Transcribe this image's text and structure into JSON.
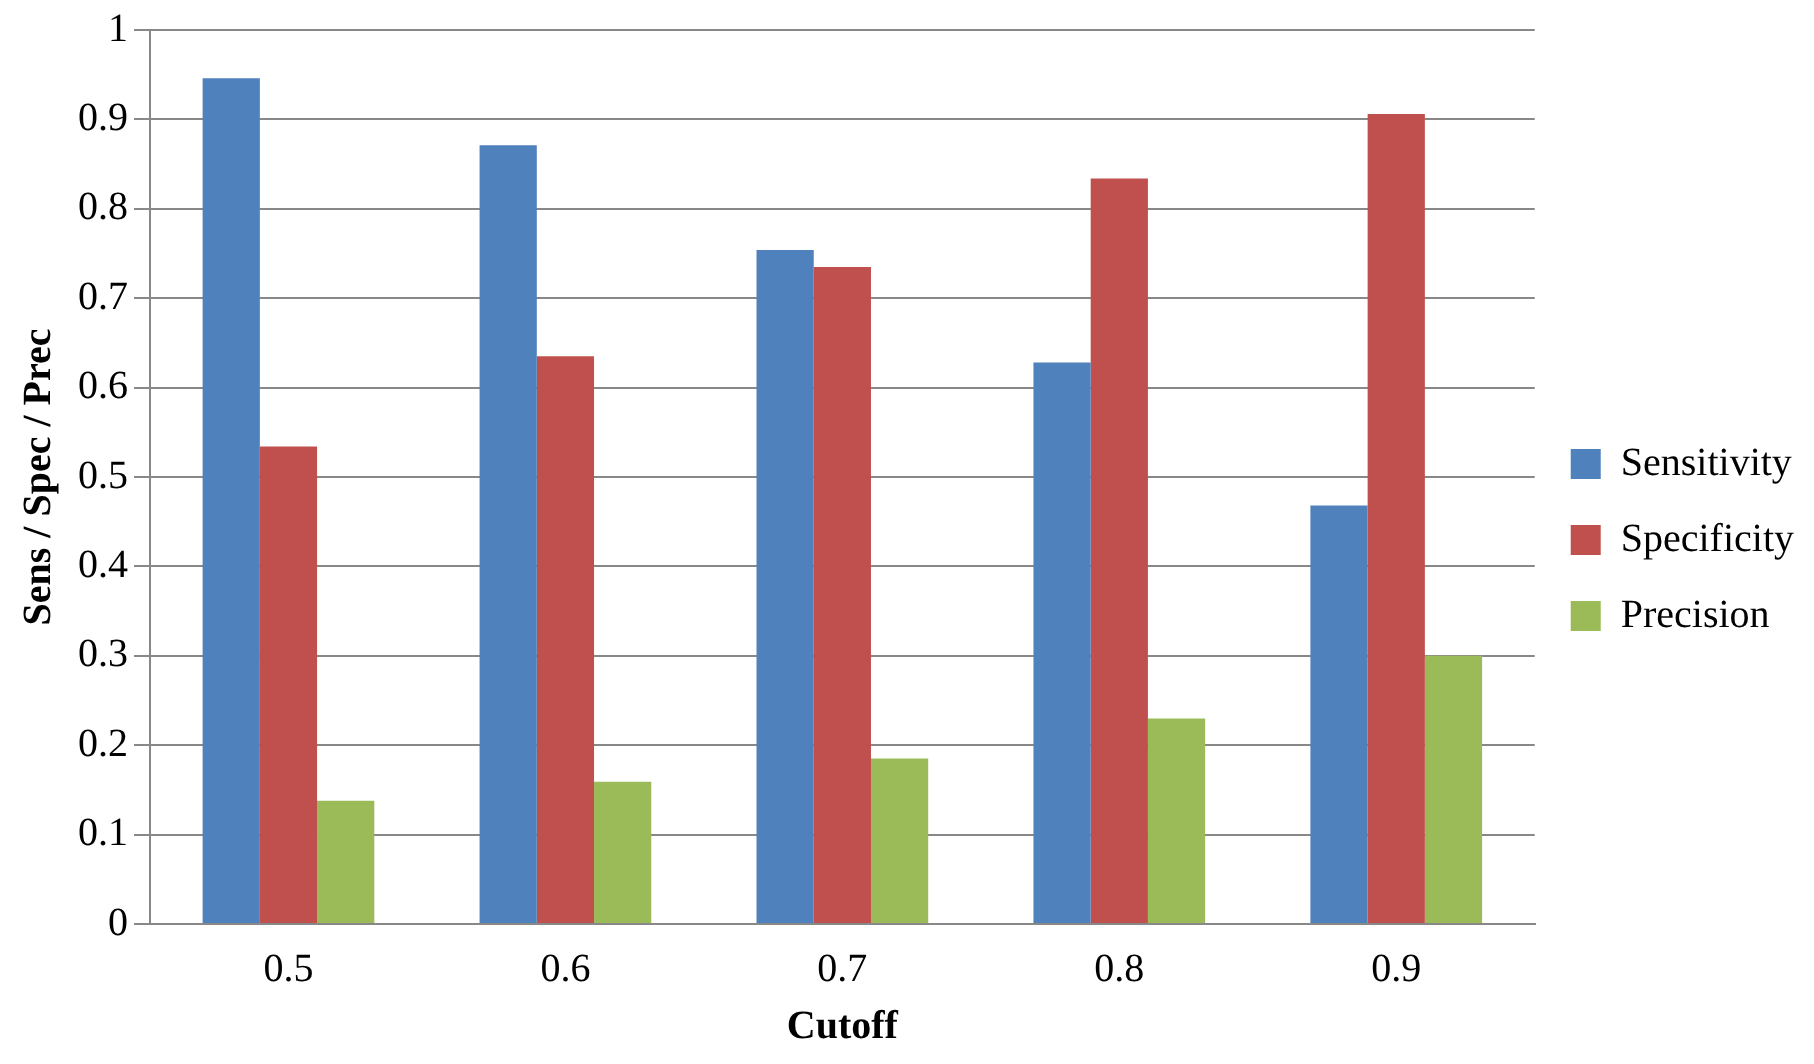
{
  "chart_data": {
    "type": "bar",
    "xlabel": "Cutoff",
    "ylabel": "Sens / Spec / Prec",
    "categories": [
      "0.5",
      "0.6",
      "0.7",
      "0.8",
      "0.9"
    ],
    "series": [
      {
        "name": "Sensitivity",
        "color": "#4f81bd",
        "values": [
          0.946,
          0.871,
          0.754,
          0.628,
          0.468
        ]
      },
      {
        "name": "Specificity",
        "color": "#c0504d",
        "values": [
          0.534,
          0.635,
          0.735,
          0.834,
          0.906
        ]
      },
      {
        "name": "Precision",
        "color": "#9bbb59",
        "values": [
          0.138,
          0.159,
          0.185,
          0.23,
          0.3
        ]
      }
    ],
    "ylim": [
      0,
      1
    ],
    "yticks": [
      0,
      0.1,
      0.2,
      0.3,
      0.4,
      0.5,
      0.6,
      0.7,
      0.8,
      0.9,
      1
    ],
    "grid": "y",
    "legend": "right"
  }
}
